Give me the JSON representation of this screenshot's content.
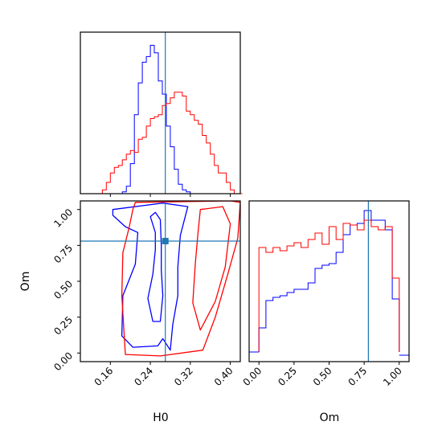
{
  "chart_data": [
    {
      "type": "histogram",
      "panel": "H0 marginal",
      "series": [
        {
          "color": "#0000ff",
          "bins": [
            0.136,
            0.144,
            0.152,
            0.16,
            0.168,
            0.176,
            0.184,
            0.192,
            0.2,
            0.208,
            0.216,
            0.224,
            0.232,
            0.24,
            0.248,
            0.256,
            0.264,
            0.272,
            0.28,
            0.288,
            0.296,
            0.304,
            0.312,
            0.32,
            0.328,
            0.336
          ],
          "values": [
            0,
            0,
            0,
            0,
            0,
            0,
            0.01,
            0.04,
            0.16,
            0.42,
            0.59,
            0.7,
            0.73,
            0.79,
            0.75,
            0.6,
            0.53,
            0.36,
            0.25,
            0.13,
            0.05,
            0.02,
            0.01,
            0,
            0
          ]
        },
        {
          "color": "#ff0000",
          "bins": [
            0.136,
            0.144,
            0.152,
            0.16,
            0.168,
            0.176,
            0.184,
            0.192,
            0.2,
            0.208,
            0.216,
            0.224,
            0.232,
            0.24,
            0.248,
            0.256,
            0.264,
            0.272,
            0.28,
            0.288,
            0.296,
            0.304,
            0.312,
            0.32,
            0.328,
            0.336,
            0.344,
            0.352,
            0.36,
            0.368,
            0.376,
            0.384,
            0.392,
            0.4,
            0.408,
            0.416,
            0.424
          ],
          "values": [
            0,
            0.02,
            0.06,
            0.11,
            0.14,
            0.15,
            0.18,
            0.21,
            0.23,
            0.22,
            0.29,
            0.3,
            0.36,
            0.4,
            0.41,
            0.42,
            0.47,
            0.48,
            0.51,
            0.54,
            0.54,
            0.52,
            0.44,
            0.42,
            0.39,
            0.37,
            0.31,
            0.27,
            0.21,
            0.15,
            0.11,
            0.11,
            0.06,
            0.02,
            0,
            0
          ]
        }
      ],
      "truth": 0.27,
      "xlim": [
        0.1,
        0.42
      ]
    },
    {
      "type": "contour",
      "panel": "H0 vs Om",
      "xlabel": "H0",
      "ylabel": "Om",
      "xticks": [
        "0.16",
        "0.24",
        "0.32",
        "0.40"
      ],
      "yticks": [
        "0.00",
        "0.25",
        "0.50",
        "0.75",
        "1.00"
      ],
      "xlim": [
        0.1,
        0.42
      ],
      "ylim": [
        -0.06,
        1.06
      ],
      "truth": [
        0.27,
        0.78
      ],
      "contours": [
        {
          "color": "#0000ff",
          "level": "inner",
          "points": [
            [
              0.24,
              0.95
            ],
            [
              0.25,
              0.84
            ],
            [
              0.25,
              0.72
            ],
            [
              0.245,
              0.55
            ],
            [
              0.235,
              0.38
            ],
            [
              0.245,
              0.22
            ],
            [
              0.26,
              0.22
            ],
            [
              0.265,
              0.4
            ],
            [
              0.262,
              0.58
            ],
            [
              0.262,
              0.75
            ],
            [
              0.26,
              0.93
            ],
            [
              0.25,
              0.98
            ]
          ]
        },
        {
          "color": "#0000ff",
          "level": "outer",
          "points": [
            [
              0.165,
              1.0
            ],
            [
              0.265,
              1.045
            ],
            [
              0.315,
              1.02
            ],
            [
              0.3,
              0.82
            ],
            [
              0.295,
              0.6
            ],
            [
              0.295,
              0.4
            ],
            [
              0.285,
              0.2
            ],
            [
              0.28,
              0.02
            ],
            [
              0.265,
              0.1
            ],
            [
              0.255,
              0.05
            ],
            [
              0.205,
              0.04
            ],
            [
              0.183,
              0.12
            ],
            [
              0.185,
              0.4
            ],
            [
              0.21,
              0.62
            ],
            [
              0.215,
              0.84
            ],
            [
              0.19,
              0.88
            ],
            [
              0.165,
              0.96
            ]
          ]
        },
        {
          "color": "#ff0000",
          "level": "inner",
          "points": [
            [
              0.34,
              1.0
            ],
            [
              0.385,
              1.02
            ],
            [
              0.4,
              0.9
            ],
            [
              0.39,
              0.6
            ],
            [
              0.37,
              0.36
            ],
            [
              0.34,
              0.16
            ],
            [
              0.325,
              0.35
            ],
            [
              0.33,
              0.62
            ],
            [
              0.335,
              0.82
            ]
          ]
        },
        {
          "color": "#ff0000",
          "level": "outer",
          "points": [
            [
              0.21,
              1.05
            ],
            [
              0.4,
              1.06
            ],
            [
              0.42,
              1.05
            ],
            [
              0.415,
              0.8
            ],
            [
              0.395,
              0.55
            ],
            [
              0.37,
              0.25
            ],
            [
              0.345,
              0.02
            ],
            [
              0.26,
              -0.02
            ],
            [
              0.19,
              -0.01
            ],
            [
              0.183,
              0.4
            ],
            [
              0.185,
              0.7
            ],
            [
              0.198,
              0.88
            ],
            [
              0.205,
              1.0
            ]
          ]
        }
      ]
    },
    {
      "type": "histogram",
      "panel": "Om marginal",
      "xlabel": "Om",
      "xticks": [
        "0.00",
        "0.25",
        "0.50",
        "0.75",
        "1.00"
      ],
      "xlim": [
        -0.07,
        1.07
      ],
      "truth": 0.78,
      "series": [
        {
          "color": "#0000ff",
          "bins": [
            0.0,
            0.05,
            0.1,
            0.15,
            0.2,
            0.25,
            0.3,
            0.35,
            0.4,
            0.45,
            0.5,
            0.55,
            0.6,
            0.65,
            0.7,
            0.75,
            0.8,
            0.85,
            0.9,
            0.95,
            1.0
          ],
          "values": [
            0.21,
            0.38,
            0.4,
            0.41,
            0.43,
            0.45,
            0.45,
            0.49,
            0.58,
            0.6,
            0.61,
            0.68,
            0.79,
            0.85,
            0.86,
            0.94,
            0.88,
            0.88,
            0.82,
            0.39
          ]
        },
        {
          "color": "#ff0000",
          "bins": [
            0.0,
            0.05,
            0.1,
            0.15,
            0.2,
            0.25,
            0.3,
            0.35,
            0.4,
            0.45,
            0.5,
            0.55,
            0.6,
            0.65,
            0.7,
            0.75,
            0.8,
            0.85,
            0.9,
            0.95,
            1.0
          ],
          "values": [
            0.71,
            0.68,
            0.71,
            0.69,
            0.72,
            0.74,
            0.71,
            0.76,
            0.8,
            0.73,
            0.84,
            0.76,
            0.86,
            0.85,
            0.82,
            0.88,
            0.84,
            0.82,
            0.84,
            0.52
          ]
        }
      ]
    }
  ]
}
